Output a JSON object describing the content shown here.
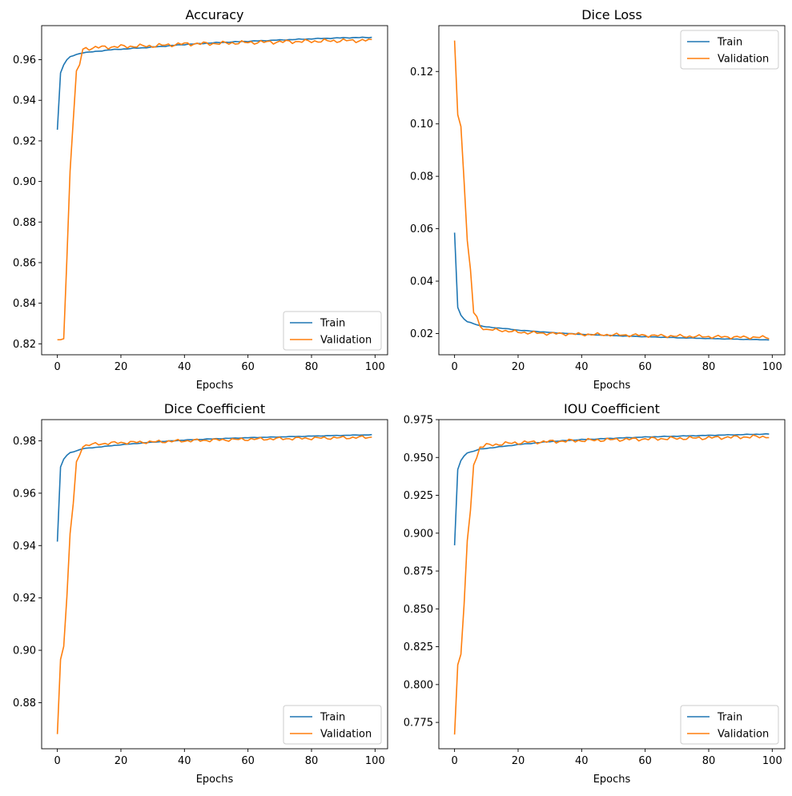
{
  "figure": {
    "width": 989,
    "height": 990
  },
  "chart_data": [
    {
      "type": "line",
      "title": "Accuracy",
      "xlabel": "Epochs",
      "ylabel": "",
      "xlim": [
        -4.95,
        103.95
      ],
      "ylim": [
        0.8146,
        0.9768
      ],
      "xticks": [
        0,
        20,
        40,
        60,
        80,
        100
      ],
      "yticks": [
        0.82,
        0.84,
        0.86,
        0.88,
        0.9,
        0.92,
        0.94,
        0.96
      ],
      "ytick_labels": [
        "0.82",
        "0.84",
        "0.86",
        "0.88",
        "0.90",
        "0.92",
        "0.94",
        "0.96"
      ],
      "legend": {
        "loc": "lower right",
        "entries": [
          "Train",
          "Validation"
        ]
      },
      "series": [
        {
          "name": "Train",
          "color": "#1f77b4",
          "anchors": [
            [
              0,
              0.9255
            ],
            [
              1,
              0.9535
            ],
            [
              2,
              0.9575
            ],
            [
              3,
              0.96
            ],
            [
              4,
              0.9615
            ],
            [
              6,
              0.9625
            ],
            [
              8,
              0.9635
            ],
            [
              12,
              0.964
            ],
            [
              16,
              0.9648
            ],
            [
              20,
              0.9652
            ],
            [
              30,
              0.9662
            ],
            [
              40,
              0.9675
            ],
            [
              50,
              0.9684
            ],
            [
              60,
              0.9691
            ],
            [
              70,
              0.9697
            ],
            [
              80,
              0.9703
            ],
            [
              90,
              0.9708
            ],
            [
              99,
              0.971
            ]
          ],
          "noise": 0.0002
        },
        {
          "name": "Validation",
          "color": "#ff7f0e",
          "anchors": [
            [
              0,
              0.822
            ],
            [
              1,
              0.822
            ],
            [
              2,
              0.8225
            ],
            [
              3,
              0.862
            ],
            [
              4,
              0.905
            ],
            [
              5,
              0.93
            ],
            [
              6,
              0.9545
            ],
            [
              7,
              0.9575
            ],
            [
              8,
              0.965
            ],
            [
              9,
              0.9655
            ],
            [
              12,
              0.966
            ],
            [
              20,
              0.9665
            ],
            [
              30,
              0.9668
            ],
            [
              40,
              0.9678
            ],
            [
              50,
              0.968
            ],
            [
              60,
              0.9685
            ],
            [
              70,
              0.9688
            ],
            [
              80,
              0.9691
            ],
            [
              90,
              0.9694
            ],
            [
              99,
              0.9695
            ]
          ],
          "noise": 0.0011,
          "noiseStart": 8
        }
      ]
    },
    {
      "type": "line",
      "title": "Dice Loss",
      "xlabel": "Epochs",
      "ylabel": "",
      "xlim": [
        -4.95,
        103.95
      ],
      "ylim": [
        0.0119,
        0.1375
      ],
      "xticks": [
        0,
        20,
        40,
        60,
        80,
        100
      ],
      "yticks": [
        0.02,
        0.04,
        0.06,
        0.08,
        0.1,
        0.12
      ],
      "ytick_labels": [
        "0.02",
        "0.04",
        "0.06",
        "0.08",
        "0.10",
        "0.12"
      ],
      "legend": {
        "loc": "upper right",
        "entries": [
          "Train",
          "Validation"
        ]
      },
      "series": [
        {
          "name": "Train",
          "color": "#1f77b4",
          "anchors": [
            [
              0,
              0.0585
            ],
            [
              1,
              0.03
            ],
            [
              2,
              0.027
            ],
            [
              3,
              0.0255
            ],
            [
              4,
              0.0245
            ],
            [
              6,
              0.0238
            ],
            [
              8,
              0.023
            ],
            [
              10,
              0.0225
            ],
            [
              15,
              0.022
            ],
            [
              20,
              0.0213
            ],
            [
              30,
              0.0204
            ],
            [
              40,
              0.0197
            ],
            [
              50,
              0.0192
            ],
            [
              60,
              0.0188
            ],
            [
              70,
              0.0184
            ],
            [
              80,
              0.0181
            ],
            [
              90,
              0.0178
            ],
            [
              99,
              0.0176
            ]
          ],
          "noise": 0.0001
        },
        {
          "name": "Validation",
          "color": "#ff7f0e",
          "anchors": [
            [
              0,
              0.1318
            ],
            [
              1,
              0.1035
            ],
            [
              2,
              0.099
            ],
            [
              3,
              0.078
            ],
            [
              4,
              0.0555
            ],
            [
              5,
              0.0445
            ],
            [
              6,
              0.028
            ],
            [
              7,
              0.0265
            ],
            [
              8,
              0.0228
            ],
            [
              10,
              0.0215
            ],
            [
              15,
              0.0212
            ],
            [
              20,
              0.0205
            ],
            [
              30,
              0.02
            ],
            [
              40,
              0.0197
            ],
            [
              50,
              0.0195
            ],
            [
              60,
              0.0193
            ],
            [
              70,
              0.019
            ],
            [
              80,
              0.0188
            ],
            [
              90,
              0.0186
            ],
            [
              99,
              0.0185
            ]
          ],
          "noise": 0.0007,
          "noiseStart": 8
        }
      ]
    },
    {
      "type": "line",
      "title": "Dice Coefficient",
      "xlabel": "Epochs",
      "ylabel": "",
      "xlim": [
        -4.95,
        103.95
      ],
      "ylim": [
        0.8624,
        0.9881
      ],
      "xticks": [
        0,
        20,
        40,
        60,
        80,
        100
      ],
      "yticks": [
        0.88,
        0.9,
        0.92,
        0.94,
        0.96,
        0.98
      ],
      "ytick_labels": [
        "0.88",
        "0.90",
        "0.92",
        "0.94",
        "0.96",
        "0.98"
      ],
      "legend": {
        "loc": "lower right",
        "entries": [
          "Train",
          "Validation"
        ]
      },
      "series": [
        {
          "name": "Train",
          "color": "#1f77b4",
          "anchors": [
            [
              0,
              0.9415
            ],
            [
              1,
              0.97
            ],
            [
              2,
              0.973
            ],
            [
              3,
              0.9745
            ],
            [
              4,
              0.9755
            ],
            [
              6,
              0.9762
            ],
            [
              8,
              0.977
            ],
            [
              12,
              0.9775
            ],
            [
              20,
              0.9785
            ],
            [
              30,
              0.9795
            ],
            [
              40,
              0.9803
            ],
            [
              50,
              0.9808
            ],
            [
              60,
              0.9812
            ],
            [
              70,
              0.9815
            ],
            [
              80,
              0.9818
            ],
            [
              90,
              0.9821
            ],
            [
              99,
              0.9823
            ]
          ],
          "noise": 0.0001
        },
        {
          "name": "Validation",
          "color": "#ff7f0e",
          "anchors": [
            [
              0,
              0.868
            ],
            [
              1,
              0.8965
            ],
            [
              2,
              0.9015
            ],
            [
              3,
              0.9205
            ],
            [
              4,
              0.9445
            ],
            [
              5,
              0.956
            ],
            [
              6,
              0.972
            ],
            [
              7,
              0.9745
            ],
            [
              8,
              0.978
            ],
            [
              10,
              0.9785
            ],
            [
              15,
              0.979
            ],
            [
              20,
              0.9793
            ],
            [
              30,
              0.9796
            ],
            [
              40,
              0.98
            ],
            [
              50,
              0.9803
            ],
            [
              60,
              0.9806
            ],
            [
              70,
              0.9808
            ],
            [
              80,
              0.981
            ],
            [
              90,
              0.9812
            ],
            [
              99,
              0.9814
            ]
          ],
          "noise": 0.0007,
          "noiseStart": 8
        }
      ]
    },
    {
      "type": "line",
      "title": "IOU Coefficient",
      "xlabel": "Epochs",
      "ylabel": "",
      "xlim": [
        -4.95,
        103.95
      ],
      "ylim": [
        0.7576,
        0.975
      ],
      "xticks": [
        0,
        20,
        40,
        60,
        80,
        100
      ],
      "yticks": [
        0.775,
        0.8,
        0.825,
        0.85,
        0.875,
        0.9,
        0.925,
        0.95,
        0.975
      ],
      "ytick_labels": [
        "0.775",
        "0.800",
        "0.825",
        "0.850",
        "0.875",
        "0.900",
        "0.925",
        "0.950",
        "0.975"
      ],
      "legend": {
        "loc": "lower right",
        "entries": [
          "Train",
          "Validation"
        ]
      },
      "series": [
        {
          "name": "Train",
          "color": "#1f77b4",
          "anchors": [
            [
              0,
              0.892
            ],
            [
              1,
              0.942
            ],
            [
              2,
              0.948
            ],
            [
              3,
              0.951
            ],
            [
              4,
              0.953
            ],
            [
              6,
              0.9542
            ],
            [
              8,
              0.9555
            ],
            [
              12,
              0.9565
            ],
            [
              20,
              0.9585
            ],
            [
              30,
              0.9605
            ],
            [
              40,
              0.9618
            ],
            [
              50,
              0.9627
            ],
            [
              60,
              0.9635
            ],
            [
              70,
              0.9641
            ],
            [
              80,
              0.9646
            ],
            [
              90,
              0.9651
            ],
            [
              99,
              0.9655
            ]
          ],
          "noise": 0.0002
        },
        {
          "name": "Validation",
          "color": "#ff7f0e",
          "anchors": [
            [
              0,
              0.767
            ],
            [
              1,
              0.813
            ],
            [
              2,
              0.82
            ],
            [
              3,
              0.853
            ],
            [
              4,
              0.895
            ],
            [
              5,
              0.915
            ],
            [
              6,
              0.945
            ],
            [
              7,
              0.95
            ],
            [
              8,
              0.957
            ],
            [
              10,
              0.958
            ],
            [
              15,
              0.959
            ],
            [
              20,
              0.9598
            ],
            [
              30,
              0.9605
            ],
            [
              40,
              0.9612
            ],
            [
              50,
              0.9618
            ],
            [
              60,
              0.9622
            ],
            [
              70,
              0.9626
            ],
            [
              80,
              0.963
            ],
            [
              90,
              0.9635
            ],
            [
              99,
              0.9638
            ]
          ],
          "noise": 0.0014,
          "noiseStart": 8
        }
      ]
    }
  ]
}
